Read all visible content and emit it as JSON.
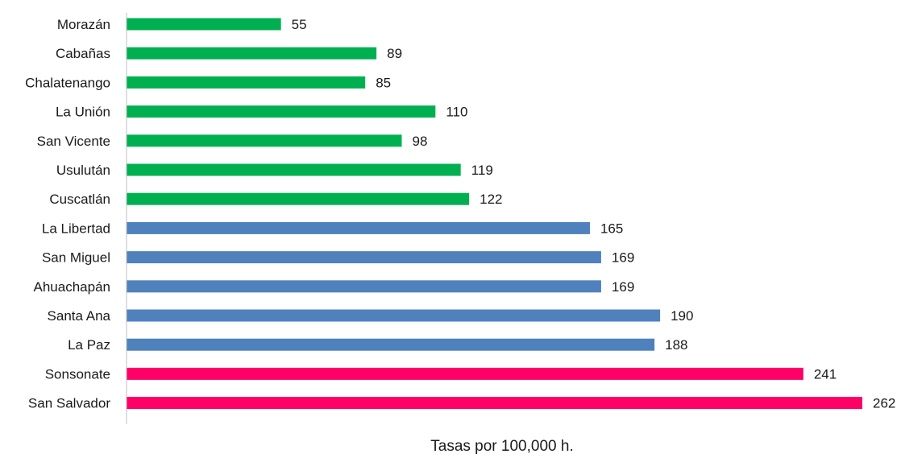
{
  "chart_data": {
    "type": "bar",
    "orientation": "horizontal",
    "categories": [
      "Morazán",
      "Cabañas",
      "Chalatenango",
      "La Unión",
      "San Vicente",
      "Usulután",
      "Cuscatlán",
      "La Libertad",
      "San Miguel",
      "Ahuachapán",
      "Santa Ana",
      "La Paz",
      "Sonsonate",
      "San Salvador"
    ],
    "values": [
      55,
      89,
      85,
      110,
      98,
      119,
      122,
      165,
      169,
      169,
      190,
      188,
      241,
      262
    ],
    "bar_colors": [
      "#00b050",
      "#00b050",
      "#00b050",
      "#00b050",
      "#00b050",
      "#00b050",
      "#00b050",
      "#4f81bd",
      "#4f81bd",
      "#4f81bd",
      "#4f81bd",
      "#4f81bd",
      "#ff0066",
      "#ff0066"
    ],
    "xlabel": "Tasas por 100,000 h.",
    "ylabel": "",
    "title": "",
    "xlim": [
      0,
      262
    ],
    "grid": false,
    "legend": "none",
    "data_labels": true
  }
}
